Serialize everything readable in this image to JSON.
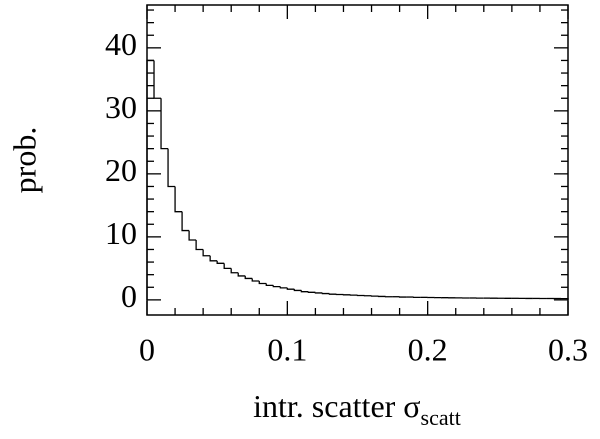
{
  "chart_data": {
    "type": "histogram",
    "xlabel": "intr. scatter σ",
    "xlabel_sub": "scatt",
    "ylabel": "prob.",
    "bins": [
      0,
      0.005,
      0.01,
      0.015,
      0.02,
      0.025,
      0.03,
      0.035,
      0.04,
      0.045,
      0.05,
      0.055,
      0.06,
      0.065,
      0.07,
      0.075,
      0.08,
      0.085,
      0.09,
      0.095,
      0.1,
      0.105,
      0.11,
      0.115,
      0.12,
      0.125,
      0.13,
      0.135,
      0.14,
      0.145,
      0.15,
      0.155,
      0.16,
      0.165,
      0.17,
      0.175,
      0.18,
      0.185,
      0.19,
      0.195,
      0.2,
      0.205,
      0.21,
      0.215,
      0.22,
      0.225,
      0.23,
      0.235,
      0.24,
      0.245,
      0.25,
      0.255,
      0.26,
      0.265,
      0.27,
      0.275,
      0.28,
      0.285,
      0.29,
      0.295,
      0.3
    ],
    "values": [
      38,
      32,
      24,
      18,
      14,
      11,
      9.5,
      8,
      7,
      6.2,
      5.8,
      5,
      4.3,
      3.8,
      3.4,
      3,
      2.6,
      2.3,
      2.1,
      1.9,
      1.7,
      1.5,
      1.3,
      1.2,
      1.1,
      1.0,
      0.9,
      0.85,
      0.8,
      0.75,
      0.7,
      0.65,
      0.6,
      0.55,
      0.5,
      0.5,
      0.45,
      0.45,
      0.4,
      0.4,
      0.38,
      0.36,
      0.35,
      0.33,
      0.32,
      0.3,
      0.3,
      0.28,
      0.28,
      0.27,
      0.26,
      0.25,
      0.25,
      0.24,
      0.23,
      0.23,
      0.22,
      0.22,
      0.21,
      0.2
    ],
    "color": "#000000",
    "xlim": [
      0,
      0.3
    ],
    "ylim": [
      -2.4,
      46.8
    ],
    "xticks": [
      0,
      0.1,
      0.2,
      0.3
    ],
    "yticks": [
      0,
      10,
      20,
      30,
      40
    ],
    "xminorticks": [
      0.02,
      0.04,
      0.06,
      0.08,
      0.12,
      0.14,
      0.16,
      0.18,
      0.22,
      0.24,
      0.26,
      0.28
    ],
    "yminorticks": [
      2,
      4,
      6,
      8,
      12,
      14,
      16,
      18,
      22,
      24,
      26,
      28,
      32,
      34,
      36,
      38,
      42,
      44,
      46
    ]
  }
}
